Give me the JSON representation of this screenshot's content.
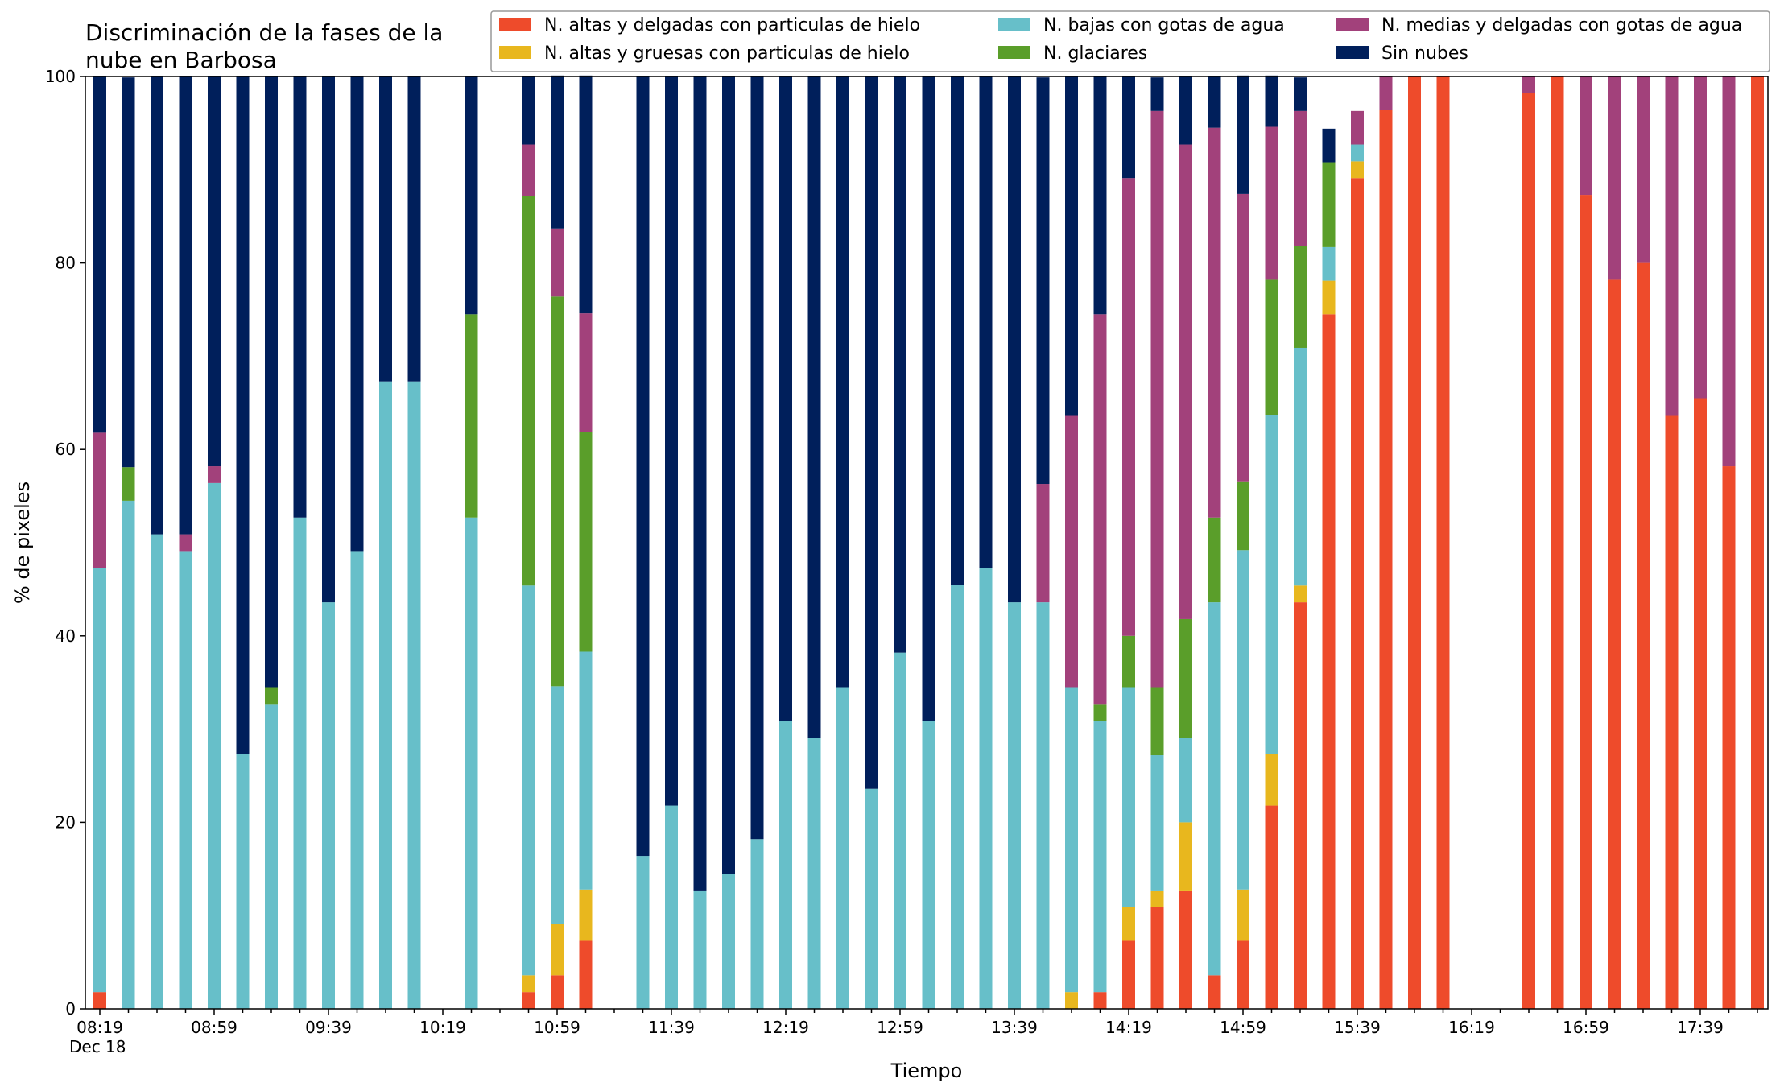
{
  "chart_data": {
    "type": "bar",
    "stacked": true,
    "title_lines": [
      "Discriminación de la fases de la",
      "nube en Barbosa"
    ],
    "xlabel": "Tiempo",
    "ylabel": "% de pixeles",
    "ylim": [
      0,
      100
    ],
    "yticks": [
      0,
      20,
      40,
      60,
      80,
      100
    ],
    "x_tick_labels": [
      "08:19",
      "08:59",
      "09:39",
      "10:19",
      "10:59",
      "11:39",
      "12:19",
      "12:59",
      "13:39",
      "14:19",
      "14:59",
      "15:39",
      "16:19",
      "16:59",
      "17:39"
    ],
    "x_sub_label": "Dec 18",
    "grid": false,
    "legend_position": "top-right",
    "categories": [
      "08:19",
      "08:29",
      "08:39",
      "08:49",
      "08:59",
      "09:09",
      "09:19",
      "09:29",
      "09:39",
      "09:49",
      "09:59",
      "10:09",
      "10:19",
      "10:29",
      "10:39",
      "10:49",
      "10:59",
      "11:09",
      "11:19",
      "11:29",
      "11:39",
      "11:49",
      "11:59",
      "12:09",
      "12:19",
      "12:29",
      "12:39",
      "12:49",
      "12:59",
      "13:09",
      "13:19",
      "13:29",
      "13:39",
      "13:49",
      "13:59",
      "14:09",
      "14:19",
      "14:29",
      "14:39",
      "14:49",
      "14:59",
      "15:09",
      "15:19",
      "15:29",
      "15:39",
      "15:49",
      "15:59",
      "16:09",
      "16:19",
      "16:29",
      "16:39",
      "16:49",
      "16:59",
      "17:09",
      "17:19",
      "17:29",
      "17:39",
      "17:49",
      "17:59"
    ],
    "series": [
      {
        "name": "N. altas y delgadas con particulas de hielo",
        "color": "#ee4b2b",
        "values": [
          1.8,
          0,
          0,
          0,
          0,
          0,
          0,
          0,
          0,
          0,
          0,
          0,
          0,
          0,
          0,
          1.8,
          3.6,
          7.3,
          0,
          0,
          0,
          0,
          0,
          0,
          0,
          0,
          0,
          0,
          0,
          0,
          0,
          0,
          0,
          0,
          0,
          1.8,
          7.3,
          10.9,
          12.7,
          3.6,
          7.3,
          21.8,
          43.6,
          74.5,
          89.1,
          96.4,
          100,
          100,
          0,
          0,
          98.2,
          100,
          87.3,
          78.2,
          80,
          63.6,
          65.5,
          58.2,
          100
        ]
      },
      {
        "name": "N. altas y gruesas con particulas de hielo",
        "color": "#e8b71e",
        "values": [
          0,
          0,
          0,
          0,
          0,
          0,
          0,
          0,
          0,
          0,
          0,
          0,
          0,
          0,
          0,
          1.8,
          5.5,
          5.5,
          0,
          0,
          0,
          0,
          0,
          0,
          0,
          0,
          0,
          0,
          0,
          0,
          0,
          0,
          0,
          0,
          1.8,
          0,
          3.6,
          1.8,
          7.3,
          0,
          5.5,
          5.5,
          1.8,
          3.6,
          1.8,
          0,
          0,
          0,
          0,
          0,
          0,
          0,
          0,
          0,
          0,
          0,
          0,
          0,
          0
        ]
      },
      {
        "name": "N. bajas con gotas de agua",
        "color": "#67bfc9",
        "values": [
          45.5,
          54.5,
          50.9,
          49.1,
          56.4,
          27.3,
          32.7,
          52.7,
          43.6,
          49.1,
          67.3,
          67.3,
          0,
          52.7,
          0,
          41.8,
          25.5,
          25.5,
          0,
          16.4,
          21.8,
          12.7,
          14.5,
          18.2,
          30.9,
          29.1,
          34.5,
          23.6,
          38.2,
          30.9,
          45.5,
          47.3,
          43.6,
          43.6,
          32.7,
          29.1,
          23.6,
          14.5,
          9.1,
          40,
          36.4,
          36.4,
          25.5,
          3.6,
          1.8,
          0,
          0,
          0,
          0,
          0,
          0,
          0,
          0,
          0,
          0,
          0,
          0,
          0,
          0
        ]
      },
      {
        "name": "N. glaciares",
        "color": "#5a9e2a",
        "values": [
          0,
          3.6,
          0,
          0,
          0,
          0,
          1.8,
          0,
          0,
          0,
          0,
          0,
          0,
          21.8,
          0,
          41.8,
          41.8,
          23.6,
          0,
          0,
          0,
          0,
          0,
          0,
          0,
          0,
          0,
          0,
          0,
          0,
          0,
          0,
          0,
          0,
          0,
          1.8,
          5.5,
          7.3,
          12.7,
          9.1,
          7.3,
          14.5,
          10.9,
          9.1,
          0,
          0,
          0,
          0,
          0,
          0,
          0,
          0,
          0,
          0,
          0,
          0,
          0,
          0,
          0
        ]
      },
      {
        "name": "N. medias y delgadas con gotas de agua",
        "color": "#a2417b",
        "values": [
          14.5,
          0,
          0,
          1.8,
          1.8,
          0,
          0,
          0,
          0,
          0,
          0,
          0,
          0,
          0,
          0,
          5.5,
          7.3,
          12.7,
          0,
          0,
          0,
          0,
          0,
          0,
          0,
          0,
          0,
          0,
          0,
          0,
          0,
          0,
          0,
          12.7,
          29.1,
          41.8,
          49.1,
          61.8,
          50.9,
          41.8,
          30.9,
          16.4,
          14.5,
          0,
          3.6,
          3.6,
          0,
          0,
          0,
          0,
          1.8,
          0,
          12.7,
          21.8,
          20,
          36.4,
          34.5,
          41.8,
          0
        ]
      },
      {
        "name": "Sin nubes",
        "color": "#001f5b",
        "values": [
          38.2,
          41.8,
          49.1,
          49.1,
          41.8,
          72.7,
          65.5,
          47.3,
          56.4,
          50.9,
          32.7,
          32.7,
          0,
          25.5,
          0,
          7.3,
          16.4,
          25.5,
          0,
          83.6,
          78.2,
          87.3,
          85.5,
          81.8,
          69.1,
          70.9,
          65.5,
          76.4,
          61.8,
          69.1,
          54.5,
          52.7,
          56.4,
          43.6,
          36.4,
          25.5,
          10.9,
          3.6,
          7.3,
          5.5,
          12.7,
          5.5,
          3.6,
          3.6,
          0,
          0,
          0,
          0,
          0,
          0,
          0,
          0,
          0,
          0,
          0,
          0,
          0,
          0,
          0
        ]
      }
    ]
  }
}
